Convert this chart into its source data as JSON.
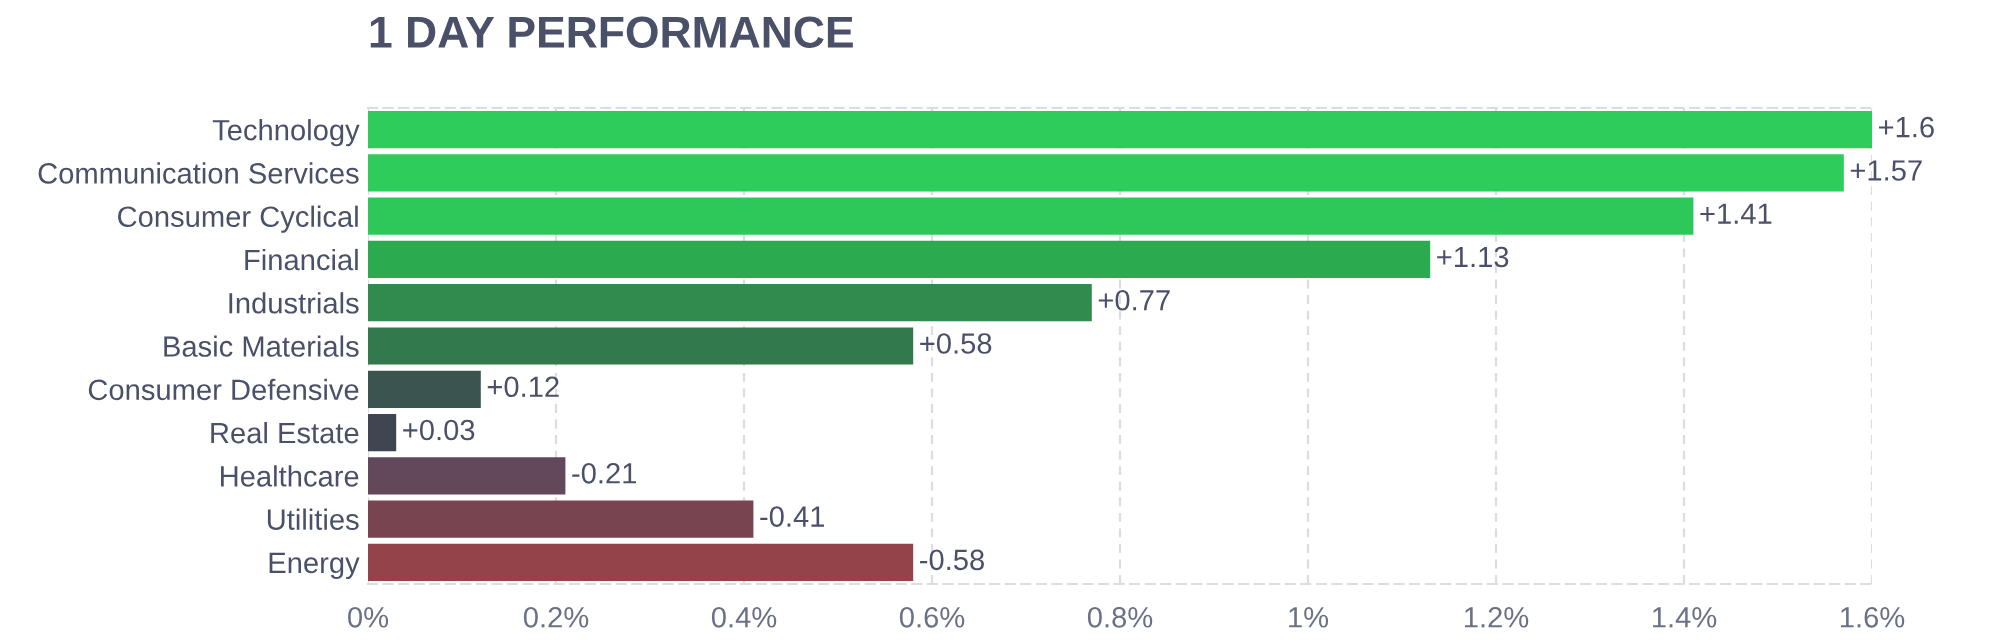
{
  "chart_data": {
    "type": "bar",
    "orientation": "horizontal",
    "title": "1 DAY PERFORMANCE",
    "categories": [
      "Technology",
      "Communication Services",
      "Consumer Cyclical",
      "Financial",
      "Industrials",
      "Basic Materials",
      "Consumer Defensive",
      "Real Estate",
      "Healthcare",
      "Utilities",
      "Energy"
    ],
    "values": [
      1.6,
      1.57,
      1.41,
      1.13,
      0.77,
      0.58,
      0.12,
      0.03,
      -0.21,
      -0.41,
      -0.58
    ],
    "base": [
      0,
      0,
      0,
      0,
      0,
      0,
      0,
      0,
      0.21,
      0.41,
      0.58
    ],
    "value_labels": [
      "+1.6",
      "+1.57",
      "+1.41",
      "+1.13",
      "+0.77",
      "+0.58",
      "+0.12",
      "+0.03",
      "-0.21",
      "-0.41",
      "-0.58"
    ],
    "colors": [
      "#2ecc5b",
      "#2ecc5b",
      "#2ec85a",
      "#2caa50",
      "#318a4e",
      "#327a4d",
      "#3b544f",
      "#404552",
      "#63475a",
      "#77444f",
      "#94434b"
    ],
    "xlim": [
      0,
      1.6
    ],
    "xticks": [
      {
        "value": 0,
        "label": "0%"
      },
      {
        "value": 0.2,
        "label": "0.2%"
      },
      {
        "value": 0.4,
        "label": "0.4%"
      },
      {
        "value": 0.6,
        "label": "0.6%"
      },
      {
        "value": 0.8,
        "label": "0.8%"
      },
      {
        "value": 1,
        "label": "1%"
      },
      {
        "value": 1.2,
        "label": "1.2%"
      },
      {
        "value": 1.4,
        "label": "1.4%"
      },
      {
        "value": 1.6,
        "label": "1.6%"
      }
    ],
    "grid": "x"
  }
}
